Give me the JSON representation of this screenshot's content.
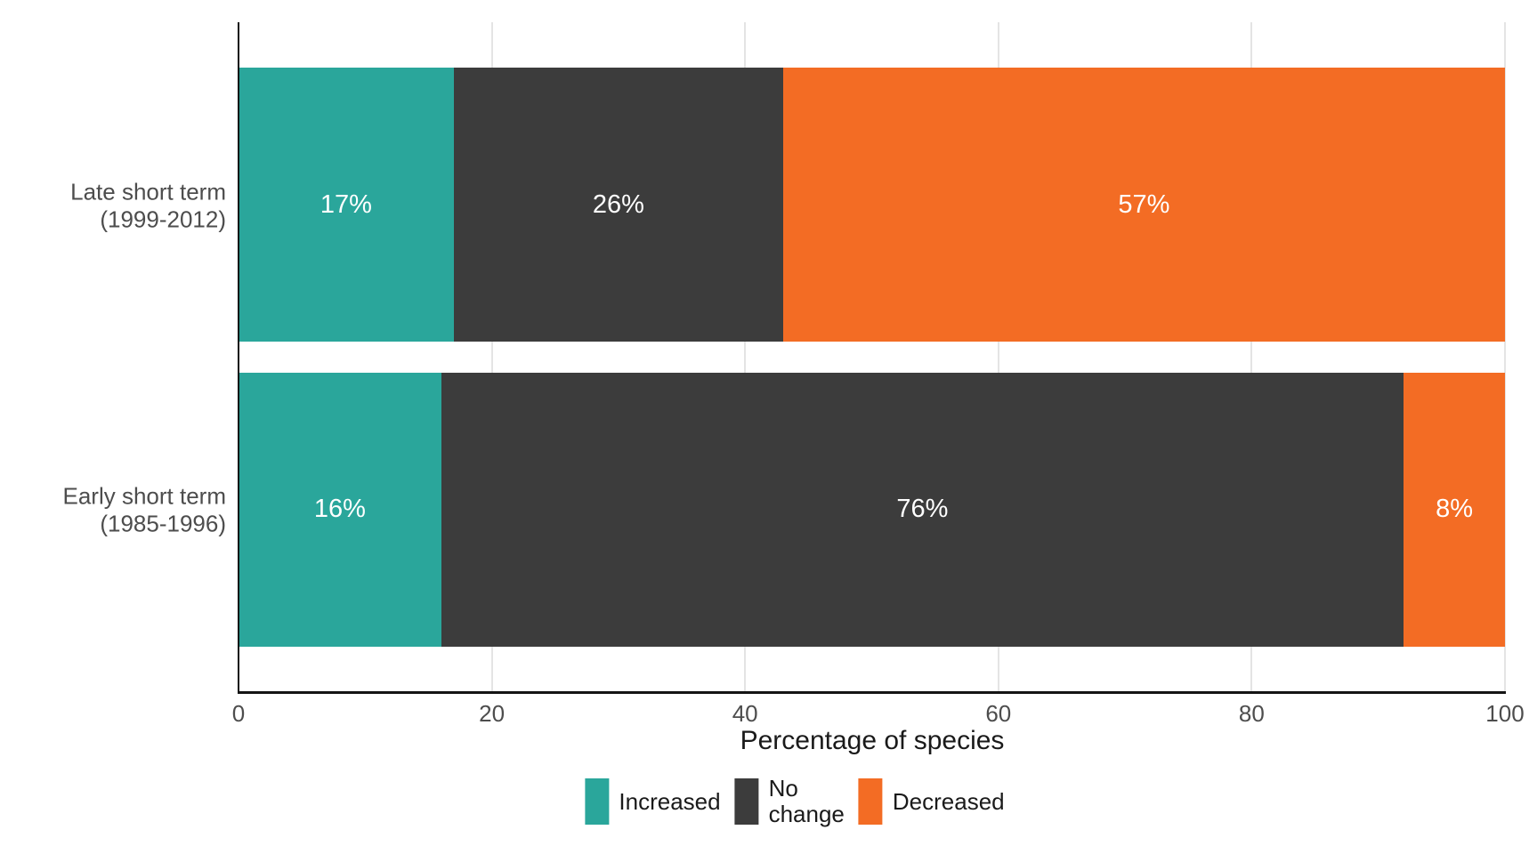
{
  "chart_data": {
    "type": "bar",
    "orientation": "horizontal",
    "stacked": true,
    "title": "",
    "xlabel": "Percentage of species",
    "ylabel": "",
    "xlim": [
      0,
      100
    ],
    "xticks": [
      0,
      20,
      40,
      60,
      80,
      100
    ],
    "grid": "vertical-major-only",
    "legend_position": "bottom",
    "categories": [
      {
        "lines": [
          "Late short term",
          "(1999-2012)"
        ]
      },
      {
        "lines": [
          "Early short term",
          "(1985-1996)"
        ]
      }
    ],
    "series": [
      {
        "name": "Increased",
        "color": "#2aa69b",
        "values": [
          17,
          16
        ]
      },
      {
        "name": "No change",
        "color": "#3c3c3c",
        "values": [
          26,
          76
        ]
      },
      {
        "name": "Decreased",
        "color": "#f36c24",
        "values": [
          57,
          8
        ]
      }
    ],
    "data_label_suffix": "%",
    "bar_labels": [
      [
        "17%",
        "26%",
        "57%"
      ],
      [
        "16%",
        "76%",
        "8%"
      ]
    ]
  },
  "colors": {
    "background": "#ffffff",
    "axis_line": "#141414",
    "gridline": "#e4e4e4",
    "tick_text": "#4d4d4d",
    "category_text": "#4d4d4d",
    "axis_title_text": "#1a1a1a",
    "bar_label_text": "#ffffff",
    "teal": "#2aa69b",
    "dark_gray": "#3c3c3c",
    "orange": "#f36c24"
  }
}
